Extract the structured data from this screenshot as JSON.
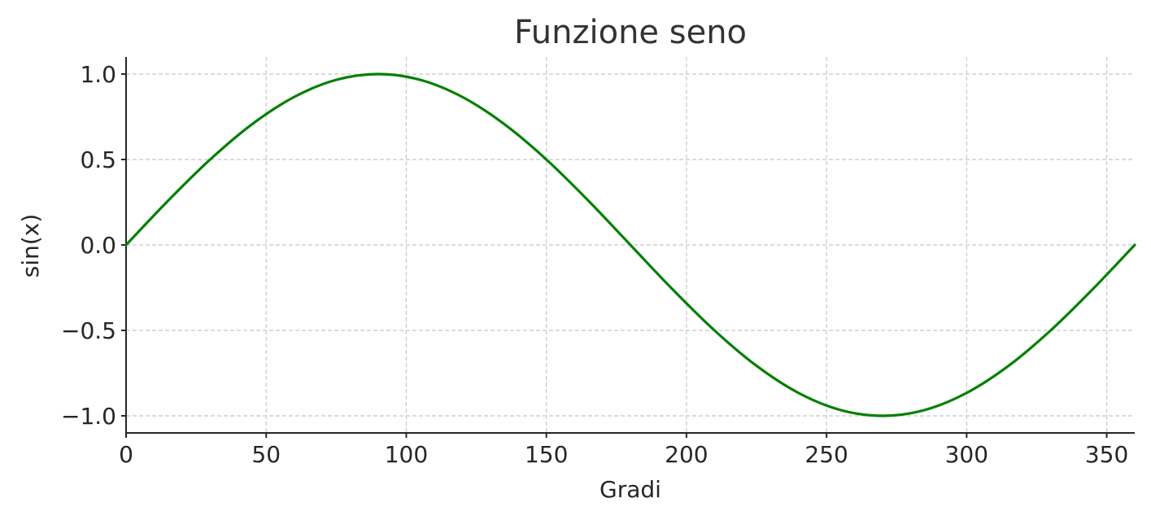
{
  "chart_data": {
    "type": "line",
    "title": "Funzione seno",
    "xlabel": "Gradi",
    "ylabel": "sin(x)",
    "xlim": [
      0,
      360
    ],
    "ylim": [
      -1.1,
      1.1
    ],
    "grid": true,
    "x_ticks": [
      0,
      50,
      100,
      150,
      200,
      250,
      300,
      350
    ],
    "x_tick_labels": [
      "0",
      "50",
      "100",
      "150",
      "200",
      "250",
      "300",
      "350"
    ],
    "y_ticks": [
      1.0,
      0.5,
      0.0,
      -0.5,
      -1.0
    ],
    "y_tick_labels": [
      "1.0",
      "0.5",
      "0.0",
      "−0.5",
      "−1.0"
    ],
    "series": [
      {
        "color": "#008000",
        "x": [
          0,
          15,
          30,
          45,
          60,
          75,
          90,
          105,
          120,
          135,
          150,
          165,
          180,
          195,
          210,
          225,
          240,
          255,
          270,
          285,
          300,
          315,
          330,
          345,
          360
        ],
        "y": [
          0.0,
          0.259,
          0.5,
          0.707,
          0.866,
          0.966,
          1.0,
          0.966,
          0.866,
          0.707,
          0.5,
          0.259,
          0.0,
          -0.259,
          -0.5,
          -0.707,
          -0.866,
          -0.966,
          -1.0,
          -0.966,
          -0.866,
          -0.707,
          -0.5,
          -0.259,
          0.0
        ]
      }
    ]
  }
}
